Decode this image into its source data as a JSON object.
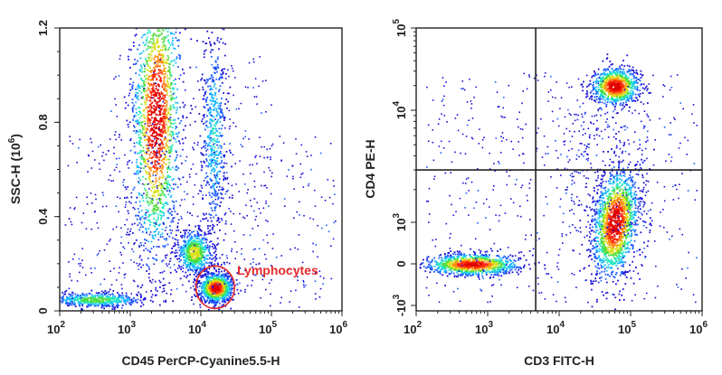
{
  "colors": {
    "axis": "#222222",
    "gate": "#e52b2b",
    "density_ramp": [
      "#1b10d6",
      "#1e5cff",
      "#19b8ff",
      "#22e6c0",
      "#4fdc3a",
      "#d9e01a",
      "#ff8c12",
      "#ff2a08",
      "#e00000"
    ]
  },
  "chart_data": [
    {
      "type": "scatter",
      "subtype": "flow-cytometry density dot plot",
      "title": "",
      "xlabel": "CD45 PerCP-Cyanine5.5-H",
      "ylabel": "SSC-H (10^6)",
      "ylabel_base": "SSC-H (10",
      "ylabel_exp": "6",
      "ylabel_close": ")",
      "xscale": "log",
      "yscale": "linear",
      "xlim": [
        100,
        1000000
      ],
      "ylim": [
        0,
        1.2
      ],
      "x_ticks": [
        {
          "base": "10",
          "exp": "2"
        },
        {
          "base": "10",
          "exp": "3"
        },
        {
          "base": "10",
          "exp": "4"
        },
        {
          "base": "10",
          "exp": "5"
        },
        {
          "base": "10",
          "exp": "6"
        }
      ],
      "y_ticks": [
        "0",
        "0.4",
        "0.8",
        "1.2"
      ],
      "populations": [
        {
          "x_center": 2300,
          "y_center": 0.82,
          "density": "high",
          "shape": "tall ellipse",
          "y_range": [
            0.35,
            1.2
          ]
        },
        {
          "x_center": 16000,
          "y_center": 0.1,
          "density": "highest",
          "shape": "compact ellipse"
        },
        {
          "x_center": 8000,
          "y_center": 0.25,
          "density": "medium",
          "shape": "ellipse"
        },
        {
          "x_center": 15000,
          "y_center": 0.75,
          "density": "low",
          "shape": "vertical streak"
        },
        {
          "x_center": 320,
          "y_center": 0.05,
          "density": "medium",
          "shape": "horizontal band"
        }
      ],
      "gates": [
        {
          "label": "Lymphocytes",
          "x_center": 16000,
          "y_center": 0.1,
          "x_range": [
            8500,
            30000
          ],
          "y_range": [
            0.01,
            0.19
          ]
        }
      ]
    },
    {
      "type": "scatter",
      "subtype": "flow-cytometry density dot plot",
      "title": "",
      "xlabel": "CD3 FITC-H",
      "ylabel": "CD4 PE-H",
      "xscale": "log",
      "yscale": "biexponential",
      "xlim": [
        100,
        1000000
      ],
      "ylim": [
        -1000,
        100000
      ],
      "x_ticks": [
        {
          "base": "10",
          "exp": "2"
        },
        {
          "base": "10",
          "exp": "3"
        },
        {
          "base": "10",
          "exp": "4"
        },
        {
          "base": "10",
          "exp": "5"
        },
        {
          "base": "10",
          "exp": "6"
        }
      ],
      "y_ticks": [
        {
          "base": "-10",
          "exp": "3"
        },
        {
          "base": "0",
          "exp": ""
        },
        {
          "base": "10",
          "exp": "3"
        },
        {
          "base": "10",
          "exp": "4"
        },
        {
          "base": "10",
          "exp": "5"
        }
      ],
      "quadrant_gate": {
        "x": 4700,
        "y": 3000
      },
      "populations": [
        {
          "x_center": 60000,
          "y_center": 1000,
          "density": "highest",
          "shape": "tall ellipse",
          "quadrant": "lower-right"
        },
        {
          "x_center": 60000,
          "y_center": 20000,
          "density": "high",
          "shape": "ellipse",
          "quadrant": "upper-right"
        },
        {
          "x_center": 600,
          "y_center": 0,
          "density": "high",
          "shape": "horizontal ellipse",
          "quadrant": "lower-left"
        }
      ]
    }
  ]
}
